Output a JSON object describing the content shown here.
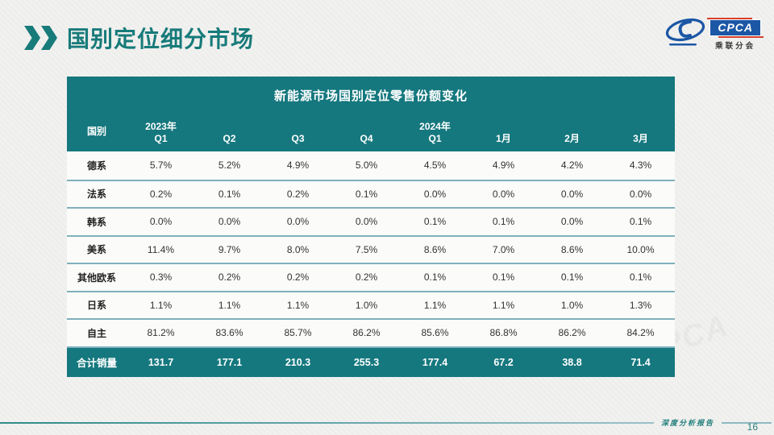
{
  "page": {
    "title": "国别定位细分市场",
    "footer_text": "深度分析报告",
    "page_number": "16"
  },
  "logo": {
    "acronym": "CPCA",
    "subtitle": "乘联分会"
  },
  "table": {
    "title": "新能源市场国别定位零售份额变化",
    "columns": [
      "国别",
      "2023年|Q1",
      "Q2",
      "Q3",
      "Q4",
      "2024年|Q1",
      "1月",
      "2月",
      "3月"
    ],
    "rows": [
      {
        "label": "德系",
        "values": [
          "5.7%",
          "5.2%",
          "4.9%",
          "5.0%",
          "4.5%",
          "4.9%",
          "4.2%",
          "4.3%"
        ]
      },
      {
        "label": "法系",
        "values": [
          "0.2%",
          "0.1%",
          "0.2%",
          "0.1%",
          "0.0%",
          "0.0%",
          "0.0%",
          "0.0%"
        ]
      },
      {
        "label": "韩系",
        "values": [
          "0.0%",
          "0.0%",
          "0.0%",
          "0.0%",
          "0.1%",
          "0.1%",
          "0.0%",
          "0.1%"
        ]
      },
      {
        "label": "美系",
        "values": [
          "11.4%",
          "9.7%",
          "8.0%",
          "7.5%",
          "8.6%",
          "7.0%",
          "8.6%",
          "10.0%"
        ]
      },
      {
        "label": "其他欧系",
        "values": [
          "0.3%",
          "0.2%",
          "0.2%",
          "0.2%",
          "0.1%",
          "0.1%",
          "0.1%",
          "0.1%"
        ]
      },
      {
        "label": "日系",
        "values": [
          "1.1%",
          "1.1%",
          "1.1%",
          "1.0%",
          "1.1%",
          "1.1%",
          "1.0%",
          "1.3%"
        ]
      },
      {
        "label": "自主",
        "values": [
          "81.2%",
          "83.6%",
          "85.7%",
          "86.2%",
          "85.6%",
          "86.8%",
          "86.2%",
          "84.2%"
        ]
      }
    ],
    "total_row": {
      "label": "合计销量",
      "values": [
        "131.7",
        "177.1",
        "210.3",
        "255.3",
        "177.4",
        "67.2",
        "38.8",
        "71.4"
      ]
    }
  },
  "chart_data": {
    "type": "table",
    "title": "新能源市场国别定位零售份额变化",
    "columns": [
      "国别",
      "2023年Q1",
      "Q2",
      "Q3",
      "Q4",
      "2024年Q1",
      "1月",
      "2月",
      "3月"
    ],
    "rows": [
      [
        "德系",
        5.7,
        5.2,
        4.9,
        5.0,
        4.5,
        4.9,
        4.2,
        4.3
      ],
      [
        "法系",
        0.2,
        0.1,
        0.2,
        0.1,
        0.0,
        0.0,
        0.0,
        0.0
      ],
      [
        "韩系",
        0.0,
        0.0,
        0.0,
        0.0,
        0.1,
        0.1,
        0.0,
        0.1
      ],
      [
        "美系",
        11.4,
        9.7,
        8.0,
        7.5,
        8.6,
        7.0,
        8.6,
        10.0
      ],
      [
        "其他欧系",
        0.3,
        0.2,
        0.2,
        0.2,
        0.1,
        0.1,
        0.1,
        0.1
      ],
      [
        "日系",
        1.1,
        1.1,
        1.1,
        1.0,
        1.1,
        1.1,
        1.0,
        1.3
      ],
      [
        "自主",
        81.2,
        83.6,
        85.7,
        86.2,
        85.6,
        86.8,
        86.2,
        84.2
      ],
      [
        "合计销量",
        131.7,
        177.1,
        210.3,
        255.3,
        177.4,
        67.2,
        38.8,
        71.4
      ]
    ],
    "units": "share rows in %, 合计销量 in 万辆 (total sales)"
  },
  "colors": {
    "accent_teal": "#177B7A",
    "table_header_bg": "#15787E",
    "row_border": "#7FB0BC",
    "logo_blue": "#1C57A5",
    "logo_red": "#D6402C",
    "page_bg": "#F1F1EF"
  }
}
